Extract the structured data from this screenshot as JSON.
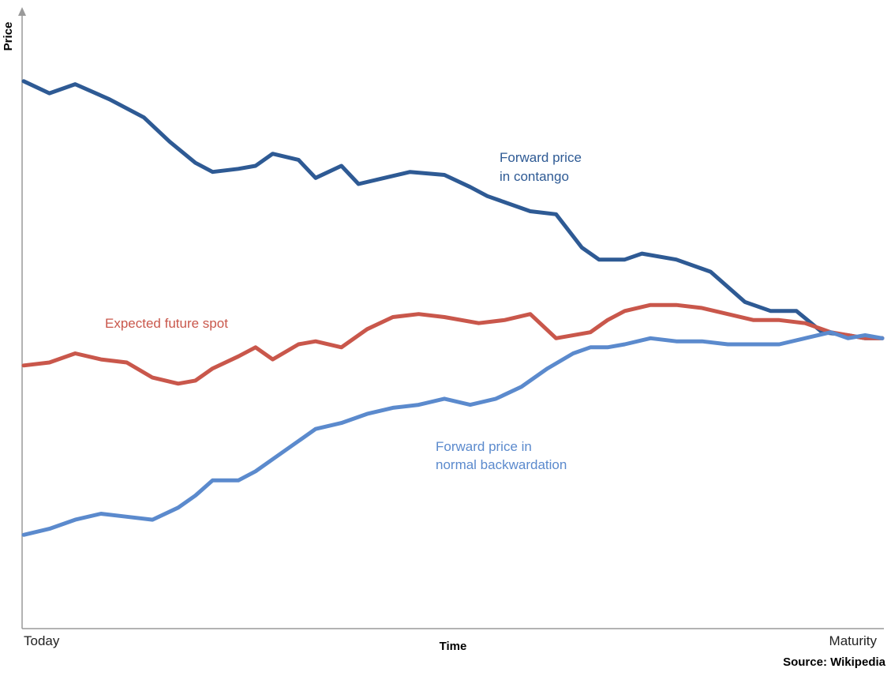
{
  "chart_data": {
    "type": "line",
    "ylabel": "Price",
    "xlabel": "Time",
    "x_tick_labels": [
      "Today",
      "Maturity"
    ],
    "xlim": [
      0,
      1
    ],
    "ylim": [
      0,
      1
    ],
    "grid": false,
    "source": "Source: Wikipedia",
    "series": [
      {
        "key": "contango",
        "label_lines": [
          "Forward price",
          "in contango"
        ],
        "color": "#2E5A94",
        "x": [
          0,
          0.03,
          0.06,
          0.1,
          0.14,
          0.17,
          0.2,
          0.22,
          0.25,
          0.27,
          0.29,
          0.32,
          0.34,
          0.37,
          0.39,
          0.42,
          0.45,
          0.49,
          0.52,
          0.54,
          0.56,
          0.59,
          0.62,
          0.65,
          0.67,
          0.7,
          0.72,
          0.76,
          0.8,
          0.84,
          0.87,
          0.9,
          0.93,
          0.96,
          0.98,
          1.0
        ],
        "y": [
          0.905,
          0.885,
          0.9,
          0.875,
          0.845,
          0.805,
          0.77,
          0.755,
          0.76,
          0.765,
          0.785,
          0.775,
          0.745,
          0.765,
          0.735,
          0.745,
          0.755,
          0.75,
          0.73,
          0.715,
          0.705,
          0.69,
          0.685,
          0.63,
          0.61,
          0.61,
          0.62,
          0.61,
          0.59,
          0.54,
          0.525,
          0.525,
          0.49,
          0.485,
          0.48,
          0.48
        ]
      },
      {
        "key": "spot",
        "label_lines": [
          "Expected future spot"
        ],
        "color": "#C9574B",
        "x": [
          0,
          0.03,
          0.06,
          0.09,
          0.12,
          0.15,
          0.18,
          0.2,
          0.22,
          0.25,
          0.27,
          0.29,
          0.32,
          0.34,
          0.37,
          0.4,
          0.43,
          0.46,
          0.49,
          0.53,
          0.56,
          0.59,
          0.62,
          0.66,
          0.68,
          0.7,
          0.73,
          0.76,
          0.79,
          0.82,
          0.85,
          0.88,
          0.91,
          0.94,
          0.96,
          0.98,
          1.0
        ],
        "y": [
          0.435,
          0.44,
          0.455,
          0.445,
          0.44,
          0.415,
          0.405,
          0.41,
          0.43,
          0.45,
          0.465,
          0.445,
          0.47,
          0.475,
          0.465,
          0.495,
          0.515,
          0.52,
          0.515,
          0.505,
          0.51,
          0.52,
          0.48,
          0.49,
          0.51,
          0.525,
          0.535,
          0.535,
          0.53,
          0.52,
          0.51,
          0.51,
          0.505,
          0.49,
          0.485,
          0.48,
          0.48
        ]
      },
      {
        "key": "backwardation",
        "label_lines": [
          "Forward price in",
          "normal backwardation"
        ],
        "color": "#5B8ACD",
        "x": [
          0,
          0.03,
          0.06,
          0.09,
          0.12,
          0.15,
          0.18,
          0.2,
          0.22,
          0.25,
          0.27,
          0.29,
          0.32,
          0.34,
          0.37,
          0.4,
          0.43,
          0.46,
          0.49,
          0.52,
          0.55,
          0.58,
          0.61,
          0.64,
          0.66,
          0.68,
          0.7,
          0.73,
          0.76,
          0.79,
          0.82,
          0.85,
          0.88,
          0.91,
          0.94,
          0.96,
          0.98,
          1.0
        ],
        "y": [
          0.155,
          0.165,
          0.18,
          0.19,
          0.185,
          0.18,
          0.2,
          0.22,
          0.245,
          0.245,
          0.26,
          0.28,
          0.31,
          0.33,
          0.34,
          0.355,
          0.365,
          0.37,
          0.38,
          0.37,
          0.38,
          0.4,
          0.43,
          0.455,
          0.465,
          0.465,
          0.47,
          0.48,
          0.475,
          0.475,
          0.47,
          0.47,
          0.47,
          0.48,
          0.49,
          0.48,
          0.485,
          0.48
        ]
      }
    ]
  }
}
